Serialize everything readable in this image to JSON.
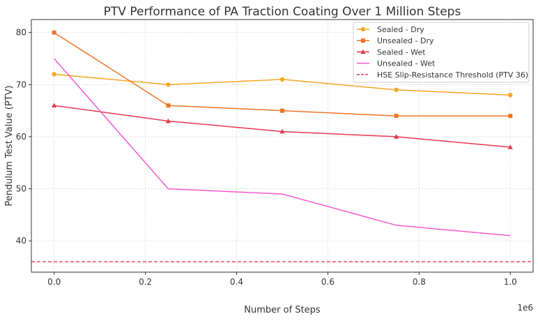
{
  "chart_data": {
    "type": "line",
    "title": "PTV Performance of PA Traction Coating Over 1 Million Steps",
    "xlabel": "Number of Steps",
    "ylabel": "Pendulum Test Value (PTV)",
    "x_offset_label": "1e6",
    "x_scale_factor": 1000000,
    "xlim": [
      -50000,
      1050000
    ],
    "ylim": [
      34,
      82.5
    ],
    "x_ticks": [
      0,
      200000,
      400000,
      600000,
      800000,
      1000000
    ],
    "x_tick_labels": [
      "0.0",
      "0.2",
      "0.4",
      "0.6",
      "0.8",
      "1.0"
    ],
    "y_ticks": [
      40,
      50,
      60,
      70,
      80
    ],
    "y_tick_labels": [
      "40",
      "50",
      "60",
      "70",
      "80"
    ],
    "grid": true,
    "legend_position": "top-right",
    "x": [
      0,
      250000,
      500000,
      750000,
      1000000
    ],
    "series": [
      {
        "name": "Sealed - Dry",
        "values": [
          72,
          70,
          71,
          69,
          68
        ],
        "color": "#f5a623",
        "marker": "circle"
      },
      {
        "name": "Unsealed - Dry",
        "values": [
          80,
          66,
          65,
          64,
          64
        ],
        "color": "#f07525",
        "marker": "square"
      },
      {
        "name": "Sealed - Wet",
        "values": [
          66,
          63,
          61,
          60,
          58
        ],
        "color": "#e8384f",
        "marker": "triangle"
      },
      {
        "name": "Unsealed - Wet",
        "values": [
          75,
          50,
          49,
          43,
          41
        ],
        "color": "#f45ad0",
        "marker": "none"
      }
    ],
    "threshold": {
      "name": "HSE Slip-Resistance Threshold (PTV 36)",
      "value": 36,
      "color": "#e8384f",
      "style": "dashed"
    }
  }
}
